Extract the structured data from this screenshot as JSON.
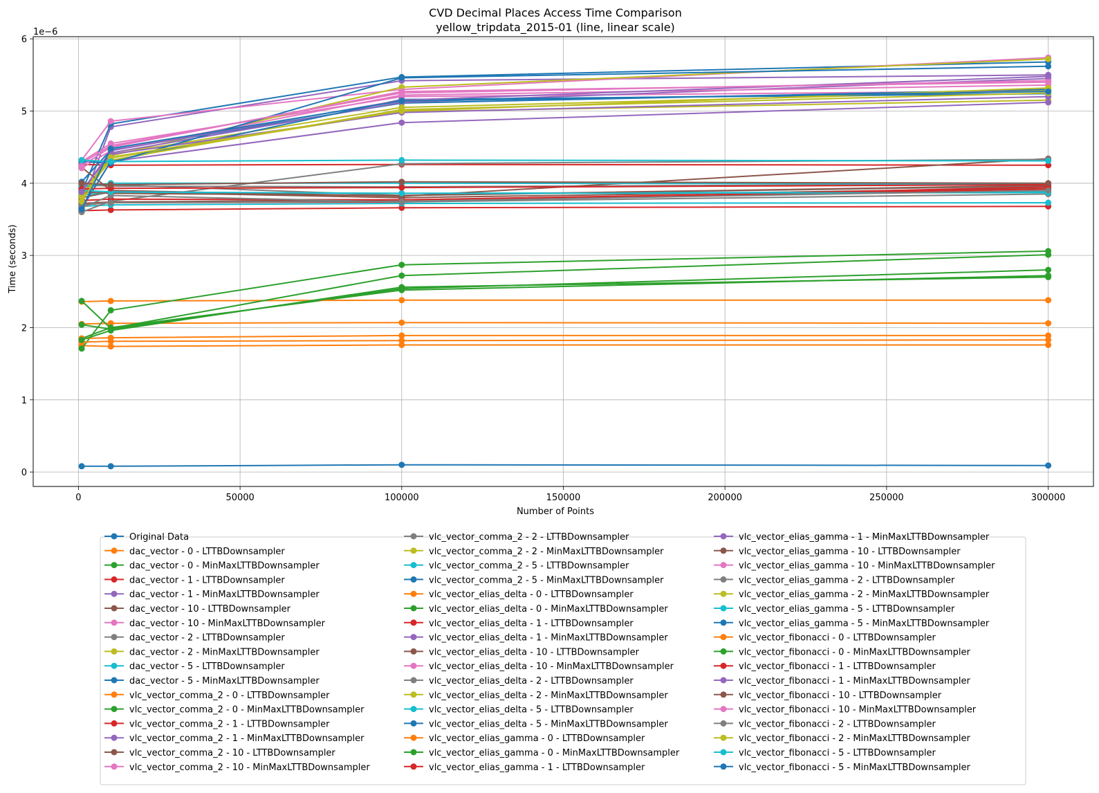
{
  "chart_data": {
    "type": "line",
    "title": "CVD Decimal Places Access Time Comparison",
    "subtitle": "yellow_tripdata_2015-01 (line, linear scale)",
    "xlabel": "Number of Points",
    "ylabel": "Time (seconds)",
    "y_offset_label": "1e−6",
    "xlim": [
      -14000,
      314000
    ],
    "ylim": [
      -0.2,
      6.03
    ],
    "x_ticks": [
      0,
      50000,
      100000,
      150000,
      200000,
      250000,
      300000
    ],
    "x_tick_labels": [
      "0",
      "50000",
      "100000",
      "150000",
      "200000",
      "250000",
      "300000"
    ],
    "y_ticks": [
      0,
      1,
      2,
      3,
      4,
      5,
      6
    ],
    "y_tick_labels": [
      "0",
      "1",
      "2",
      "3",
      "4",
      "5",
      "6"
    ],
    "grid": true,
    "legend_position": "below",
    "y_units_note": "values in units of 1e-6 seconds",
    "x": [
      1000,
      10000,
      100000,
      300000
    ],
    "series": [
      {
        "name": "Original Data",
        "color": "#1f77b4",
        "values": [
          0.08,
          0.08,
          0.1,
          0.09
        ]
      },
      {
        "name": "dac_vector - 0 - LTTBDownsampler",
        "color": "#ff7f0e",
        "values": [
          2.05,
          2.06,
          2.07,
          2.06
        ]
      },
      {
        "name": "dac_vector - 0 - MinMaxLTTBDownsampler",
        "color": "#2ca02c",
        "values": [
          1.85,
          2.0,
          2.52,
          2.72
        ]
      },
      {
        "name": "dac_vector - 1 - LTTBDownsampler",
        "color": "#d62728",
        "values": [
          3.62,
          3.63,
          3.66,
          3.68
        ]
      },
      {
        "name": "dac_vector - 1 - MinMaxLTTBDownsampler",
        "color": "#9467bd",
        "values": [
          3.7,
          4.78,
          5.42,
          5.5
        ]
      },
      {
        "name": "dac_vector - 10 - LTTBDownsampler",
        "color": "#8c564b",
        "values": [
          3.72,
          3.74,
          3.77,
          3.9
        ]
      },
      {
        "name": "dac_vector - 10 - MinMaxLTTBDownsampler",
        "color": "#e377c2",
        "values": [
          4.3,
          4.55,
          5.2,
          5.28
        ]
      },
      {
        "name": "dac_vector - 2 - LTTBDownsampler",
        "color": "#7f7f7f",
        "values": [
          3.95,
          3.98,
          3.83,
          3.96
        ]
      },
      {
        "name": "dac_vector - 2 - MinMaxLTTBDownsampler",
        "color": "#bcbd22",
        "values": [
          3.8,
          4.35,
          4.99,
          5.15
        ]
      },
      {
        "name": "dac_vector - 5 - LTTBDownsampler",
        "color": "#17becf",
        "values": [
          3.68,
          3.7,
          3.72,
          3.73
        ]
      },
      {
        "name": "dac_vector - 5 - MinMaxLTTBDownsampler",
        "color": "#1f77b4",
        "values": [
          3.88,
          4.82,
          5.47,
          5.68
        ]
      },
      {
        "name": "vlc_vector_comma_2 - 0 - LTTBDownsampler",
        "color": "#ff7f0e",
        "values": [
          2.36,
          2.37,
          2.38,
          2.38
        ]
      },
      {
        "name": "vlc_vector_comma_2 - 0 - MinMaxLTTBDownsampler",
        "color": "#2ca02c",
        "values": [
          2.04,
          1.98,
          2.54,
          2.8
        ]
      },
      {
        "name": "vlc_vector_comma_2 - 1 - LTTBDownsampler",
        "color": "#d62728",
        "values": [
          4.26,
          4.25,
          4.26,
          4.25
        ]
      },
      {
        "name": "vlc_vector_comma_2 - 1 - MinMaxLTTBDownsampler",
        "color": "#9467bd",
        "values": [
          3.65,
          4.3,
          4.84,
          5.12
        ]
      },
      {
        "name": "vlc_vector_comma_2 - 10 - LTTBDownsampler",
        "color": "#8c564b",
        "values": [
          3.8,
          3.88,
          3.8,
          3.93
        ]
      },
      {
        "name": "vlc_vector_comma_2 - 10 - MinMaxLTTBDownsampler",
        "color": "#e377c2",
        "values": [
          4.32,
          4.86,
          5.3,
          5.74
        ]
      },
      {
        "name": "vlc_vector_comma_2 - 2 - LTTBDownsampler",
        "color": "#7f7f7f",
        "values": [
          3.98,
          3.96,
          3.95,
          3.99
        ]
      },
      {
        "name": "vlc_vector_comma_2 - 2 - MinMaxLTTBDownsampler",
        "color": "#bcbd22",
        "values": [
          3.85,
          4.38,
          5.33,
          5.72
        ]
      },
      {
        "name": "vlc_vector_comma_2 - 5 - LTTBDownsampler",
        "color": "#17becf",
        "values": [
          3.84,
          3.87,
          3.86,
          3.88
        ]
      },
      {
        "name": "vlc_vector_comma_2 - 5 - MinMaxLTTBDownsampler",
        "color": "#1f77b4",
        "values": [
          4.02,
          4.46,
          5.11,
          5.3
        ]
      },
      {
        "name": "vlc_vector_elias_delta - 0 - LTTBDownsampler",
        "color": "#ff7f0e",
        "values": [
          1.75,
          1.74,
          1.76,
          1.76
        ]
      },
      {
        "name": "vlc_vector_elias_delta - 0 - MinMaxLTTBDownsampler",
        "color": "#2ca02c",
        "values": [
          1.71,
          2.24,
          2.87,
          3.06
        ]
      },
      {
        "name": "vlc_vector_elias_delta - 1 - LTTBDownsampler",
        "color": "#d62728",
        "values": [
          3.7,
          3.73,
          3.74,
          3.95
        ]
      },
      {
        "name": "vlc_vector_elias_delta - 1 - MinMaxLTTBDownsampler",
        "color": "#9467bd",
        "values": [
          3.75,
          4.42,
          5.12,
          5.45
        ]
      },
      {
        "name": "vlc_vector_elias_delta - 10 - LTTBDownsampler",
        "color": "#8c564b",
        "values": [
          4.22,
          3.9,
          3.82,
          4.34
        ]
      },
      {
        "name": "vlc_vector_elias_delta - 10 - MinMaxLTTBDownsampler",
        "color": "#e377c2",
        "values": [
          4.28,
          4.52,
          5.25,
          5.42
        ]
      },
      {
        "name": "vlc_vector_elias_delta - 2 - LTTBDownsampler",
        "color": "#7f7f7f",
        "values": [
          3.6,
          3.75,
          4.27,
          4.33
        ]
      },
      {
        "name": "vlc_vector_elias_delta - 2 - MinMaxLTTBDownsampler",
        "color": "#bcbd22",
        "values": [
          3.78,
          4.4,
          5.05,
          5.28
        ]
      },
      {
        "name": "vlc_vector_elias_delta - 5 - LTTBDownsampler",
        "color": "#17becf",
        "values": [
          3.95,
          4.0,
          4.0,
          3.99
        ]
      },
      {
        "name": "vlc_vector_elias_delta - 5 - MinMaxLTTBDownsampler",
        "color": "#1f77b4",
        "values": [
          3.66,
          4.3,
          5.16,
          5.24
        ]
      },
      {
        "name": "vlc_vector_elias_gamma - 0 - LTTBDownsampler",
        "color": "#ff7f0e",
        "values": [
          1.85,
          1.86,
          1.89,
          1.89
        ]
      },
      {
        "name": "vlc_vector_elias_gamma - 0 - MinMaxLTTBDownsampler",
        "color": "#2ca02c",
        "values": [
          2.37,
          1.99,
          2.72,
          3.01
        ]
      },
      {
        "name": "vlc_vector_elias_gamma - 1 - LTTBDownsampler",
        "color": "#d62728",
        "values": [
          3.76,
          3.78,
          3.77,
          3.92
        ]
      },
      {
        "name": "vlc_vector_elias_gamma - 1 - MinMaxLTTBDownsampler",
        "color": "#9467bd",
        "values": [
          3.9,
          4.4,
          4.98,
          5.2
        ]
      },
      {
        "name": "vlc_vector_elias_gamma - 10 - LTTBDownsampler",
        "color": "#8c564b",
        "values": [
          3.88,
          3.86,
          3.83,
          3.97
        ]
      },
      {
        "name": "vlc_vector_elias_gamma - 10 - MinMaxLTTBDownsampler",
        "color": "#e377c2",
        "values": [
          4.21,
          4.45,
          5.22,
          5.36
        ]
      },
      {
        "name": "vlc_vector_elias_gamma - 2 - LTTBDownsampler",
        "color": "#7f7f7f",
        "values": [
          3.66,
          3.83,
          3.74,
          3.85
        ]
      },
      {
        "name": "vlc_vector_elias_gamma - 2 - MinMaxLTTBDownsampler",
        "color": "#bcbd22",
        "values": [
          3.82,
          4.32,
          5.02,
          5.25
        ]
      },
      {
        "name": "vlc_vector_elias_gamma - 5 - LTTBDownsampler",
        "color": "#17becf",
        "values": [
          3.9,
          3.88,
          3.86,
          3.87
        ]
      },
      {
        "name": "vlc_vector_elias_gamma - 5 - MinMaxLTTBDownsampler",
        "color": "#1f77b4",
        "values": [
          4.3,
          4.28,
          5.46,
          5.62
        ]
      },
      {
        "name": "vlc_vector_fibonacci - 0 - LTTBDownsampler",
        "color": "#ff7f0e",
        "values": [
          1.8,
          1.81,
          1.82,
          1.83
        ]
      },
      {
        "name": "vlc_vector_fibonacci - 0 - MinMaxLTTBDownsampler",
        "color": "#2ca02c",
        "values": [
          1.83,
          1.96,
          2.56,
          2.7
        ]
      },
      {
        "name": "vlc_vector_fibonacci - 1 - LTTBDownsampler",
        "color": "#d62728",
        "values": [
          3.92,
          3.93,
          3.94,
          3.98
        ]
      },
      {
        "name": "vlc_vector_fibonacci - 1 - MinMaxLTTBDownsampler",
        "color": "#9467bd",
        "values": [
          3.88,
          4.45,
          5.15,
          5.48
        ]
      },
      {
        "name": "vlc_vector_fibonacci - 10 - LTTBDownsampler",
        "color": "#8c564b",
        "values": [
          4.0,
          3.98,
          4.02,
          4.0
        ]
      },
      {
        "name": "vlc_vector_fibonacci - 10 - MinMaxLTTBDownsampler",
        "color": "#e377c2",
        "values": [
          4.24,
          4.5,
          5.27,
          5.4
        ]
      },
      {
        "name": "vlc_vector_fibonacci - 2 - LTTBDownsampler",
        "color": "#7f7f7f",
        "values": [
          3.7,
          3.73,
          3.75,
          3.9
        ]
      },
      {
        "name": "vlc_vector_fibonacci - 2 - MinMaxLTTBDownsampler",
        "color": "#bcbd22",
        "values": [
          3.75,
          4.36,
          5.0,
          5.32
        ]
      },
      {
        "name": "vlc_vector_fibonacci - 5 - LTTBDownsampler",
        "color": "#17becf",
        "values": [
          4.32,
          4.3,
          4.32,
          4.31
        ]
      },
      {
        "name": "vlc_vector_fibonacci - 5 - MinMaxLTTBDownsampler",
        "color": "#1f77b4",
        "values": [
          3.64,
          4.48,
          5.14,
          5.27
        ]
      }
    ]
  }
}
